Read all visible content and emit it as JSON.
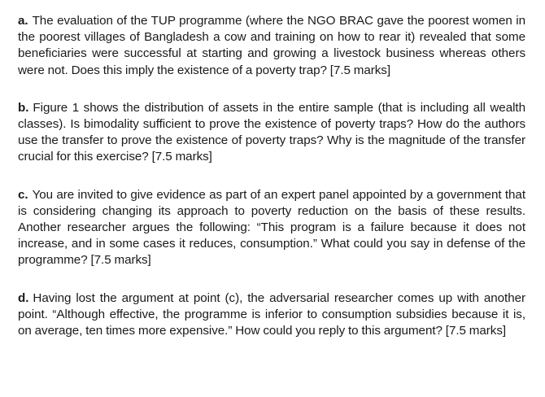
{
  "questions": [
    {
      "label": "a.",
      "text": "The evaluation of the TUP programme (where the NGO BRAC gave the poor­est women in the poorest villages of Bangladesh a cow and training on how to rear it) revealed that some beneficiaries were successful at starting and growing a livestock business whereas others were not. Does this imply the existence of a poverty trap? [7.5 marks]"
    },
    {
      "label": "b.",
      "text": "Figure 1 shows the distribution of assets in the entire sample (that is including all wealth classes). Is bimodality sufficient to prove the existence of poverty traps? How do the authors use the transfer to prove the existence of poverty traps? Why is the magnitude of the transfer crucial for this exercise? [7.5 marks]"
    },
    {
      "label": "c.",
      "text": "You are invited to give evidence as part of an expert panel appointed by a government that is considering changing its approach to poverty reduction on the basis of these results. Another researcher argues the following: “This program is a failure because it does not increase, and in some cases it reduces, consump­tion.” What could you say in defense of the programme? [7.5 marks]"
    },
    {
      "label": "d.",
      "text": "Having lost the argument at point (c), the adversarial researcher comes up with another point. “Although effective, the programme is inferior to consumption subsidies because it is, on average, ten times more expensive.” How could you reply to this argument? [7.5 marks]"
    }
  ]
}
